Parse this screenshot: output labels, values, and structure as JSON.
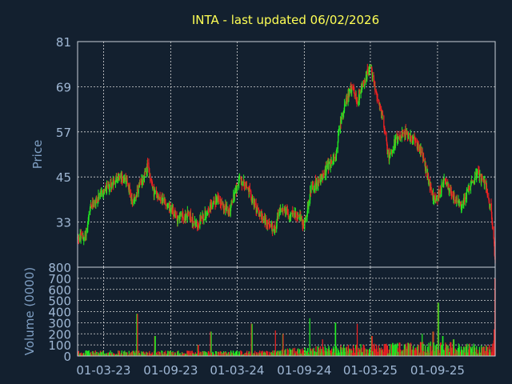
{
  "chart_data": {
    "type": "candlestick",
    "title": "INTA - last updated 06/02/2026",
    "price_panel": {
      "ylabel": "Price",
      "ylim": [
        21,
        81
      ],
      "yticks": [
        "81",
        "69",
        "57",
        "45",
        "33"
      ],
      "grid": true
    },
    "volume_panel": {
      "ylabel": "Volume (0000)",
      "ylim": [
        0,
        800
      ],
      "yticks": [
        "800",
        "700",
        "600",
        "500",
        "400",
        "300",
        "200",
        "100",
        "0"
      ],
      "grid": true
    },
    "x_tick_labels": [
      "01-03-23",
      "01-09-23",
      "01-03-24",
      "01-09-24",
      "01-03-25",
      "01-09-25"
    ],
    "x_tick_dates": [
      "2023-03-01",
      "2023-09-01",
      "2024-03-01",
      "2024-09-01",
      "2025-03-01",
      "2025-09-01"
    ],
    "x_range": [
      "2022-12-20",
      "2026-02-06"
    ],
    "up_color": "#22ee22",
    "down_color": "#ee2222",
    "price_path": [
      [
        "2022-12-20",
        29
      ],
      [
        "2023-01-10",
        29
      ],
      [
        "2023-01-25",
        37
      ],
      [
        "2023-03-01",
        41
      ],
      [
        "2023-04-10",
        45
      ],
      [
        "2023-05-05",
        44
      ],
      [
        "2023-05-20",
        38
      ],
      [
        "2023-06-15",
        44
      ],
      [
        "2023-07-01",
        48
      ],
      [
        "2023-07-15",
        41
      ],
      [
        "2023-08-20",
        38
      ],
      [
        "2023-09-20",
        34
      ],
      [
        "2023-10-20",
        35
      ],
      [
        "2023-11-10",
        32
      ],
      [
        "2023-12-10",
        36
      ],
      [
        "2024-01-05",
        39
      ],
      [
        "2024-02-10",
        36
      ],
      [
        "2024-03-05",
        44
      ],
      [
        "2024-03-25",
        43
      ],
      [
        "2024-04-20",
        37
      ],
      [
        "2024-05-20",
        33
      ],
      [
        "2024-06-10",
        31
      ],
      [
        "2024-06-30",
        37
      ],
      [
        "2024-07-20",
        35
      ],
      [
        "2024-08-15",
        35
      ],
      [
        "2024-09-01",
        32
      ],
      [
        "2024-09-20",
        42
      ],
      [
        "2024-10-15",
        44
      ],
      [
        "2024-11-05",
        48
      ],
      [
        "2024-11-25",
        50
      ],
      [
        "2024-12-10",
        60
      ],
      [
        "2025-01-05",
        69
      ],
      [
        "2025-01-25",
        65
      ],
      [
        "2025-02-15",
        71
      ],
      [
        "2025-03-01",
        75
      ],
      [
        "2025-03-15",
        68
      ],
      [
        "2025-04-05",
        60
      ],
      [
        "2025-04-20",
        50
      ],
      [
        "2025-05-10",
        55
      ],
      [
        "2025-06-01",
        57
      ],
      [
        "2025-06-25",
        55
      ],
      [
        "2025-07-20",
        52
      ],
      [
        "2025-08-10",
        43
      ],
      [
        "2025-08-25",
        38
      ],
      [
        "2025-09-20",
        44
      ],
      [
        "2025-10-15",
        40
      ],
      [
        "2025-11-05",
        37
      ],
      [
        "2025-11-25",
        42
      ],
      [
        "2025-12-20",
        46
      ],
      [
        "2026-01-10",
        43
      ],
      [
        "2026-01-25",
        37
      ],
      [
        "2026-02-06",
        23
      ]
    ],
    "volume_base": [
      [
        "2022-12-20",
        30
      ],
      [
        "2024-06-01",
        30
      ],
      [
        "2024-09-01",
        50
      ],
      [
        "2025-09-01",
        80
      ],
      [
        "2026-01-20",
        60
      ],
      [
        "2026-02-06",
        90
      ]
    ],
    "volume_spikes": [
      [
        "2023-06-01",
        380
      ],
      [
        "2023-07-20",
        180
      ],
      [
        "2023-11-15",
        100
      ],
      [
        "2023-12-20",
        220
      ],
      [
        "2024-04-10",
        290
      ],
      [
        "2024-06-15",
        230
      ],
      [
        "2024-07-05",
        200
      ],
      [
        "2024-09-15",
        340
      ],
      [
        "2024-10-20",
        150
      ],
      [
        "2024-11-25",
        300
      ],
      [
        "2025-01-25",
        290
      ],
      [
        "2025-03-05",
        180
      ],
      [
        "2025-05-20",
        120
      ],
      [
        "2025-07-20",
        200
      ],
      [
        "2025-08-20",
        220
      ],
      [
        "2025-09-03",
        480
      ],
      [
        "2025-09-15",
        180
      ],
      [
        "2025-10-15",
        150
      ],
      [
        "2026-02-04",
        240
      ],
      [
        "2026-02-06",
        700
      ]
    ]
  }
}
